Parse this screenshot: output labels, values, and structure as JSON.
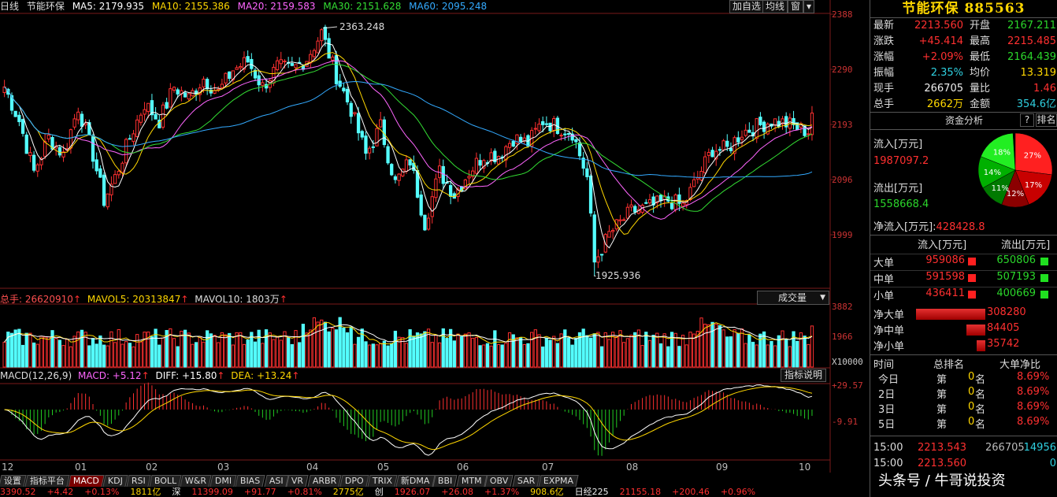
{
  "chart_header": {
    "period": "日线",
    "name": "节能环保",
    "ma5": "MA5: 2179.935",
    "ma10": "MA10: 2155.386",
    "ma20": "MA20: 2159.583",
    "ma30": "MA30: 2151.628",
    "ma60": "MA60: 2095.248",
    "arrow": "↑"
  },
  "toolbar": {
    "add_self": "加自选",
    "line": "均线",
    "window": "窗",
    "menu": "▾"
  },
  "colors": {
    "up": "#ff3030",
    "down": "#54ffff",
    "ma5": "#ffffff",
    "ma10": "#ffd700",
    "ma20": "#ff66ff",
    "ma30": "#33dd33",
    "ma60": "#33aaff"
  },
  "price_axis": [
    "2388",
    "2290",
    "2193",
    "2096",
    "1999"
  ],
  "price_annotations": {
    "high": "2363.248",
    "low": "1925.936"
  },
  "volume_header": {
    "total": "总手: 26620910",
    "mavol5": "MAVOL5: 20313847",
    "mavol10": "MAVOL10: 1803万",
    "arrow": "↑",
    "select": "成交量",
    "select_arrow": "▼"
  },
  "volume_axis": [
    "3882",
    "1966"
  ],
  "volume_unit": "X10000",
  "macd_header": {
    "label": "MACD(12,26,9)",
    "macd": "MACD: +5.12",
    "diff": "DIFF: +15.80",
    "dea": "DEA: +13.24",
    "arrow": "↑",
    "explain": "指标说明"
  },
  "macd_axis": [
    "+29.57",
    "-9.91"
  ],
  "x_axis": [
    "12",
    "01",
    "02",
    "03",
    "04",
    "05",
    "06",
    "07",
    "08",
    "09",
    "10"
  ],
  "tabs": [
    "设置",
    "指标平台",
    "MACD",
    "KDJ",
    "RSI",
    "BOLL",
    "W&R",
    "DMI",
    "BIAS",
    "ASI",
    "VR",
    "ARBR",
    "DPO",
    "TRIX",
    "新DMA",
    "BBI",
    "MTM",
    "OBV",
    "SAR",
    "EXPMA"
  ],
  "active_tab": "MACD",
  "quote": {
    "title": "节能环保 885563",
    "rows": [
      {
        "l1": "最新",
        "v1": "2213.560",
        "c1": "red",
        "l2": "开盘",
        "v2": "2167.211",
        "c2": "green"
      },
      {
        "l1": "涨跌",
        "v1": "+45.414",
        "c1": "red",
        "l2": "最高",
        "v2": "2215.485",
        "c2": "red"
      },
      {
        "l1": "涨幅",
        "v1": "+2.09%",
        "c1": "red",
        "l2": "最低",
        "v2": "2164.439",
        "c2": "green"
      },
      {
        "l1": "振幅",
        "v1": "2.35%",
        "c1": "cyan",
        "l2": "均价",
        "v2": "13.319",
        "c2": "yel"
      },
      {
        "l1": "现手",
        "v1": "266705",
        "c1": "white",
        "l2": "量比",
        "v2": "1.46",
        "c2": "red"
      },
      {
        "l1": "总手",
        "v1": "2662万",
        "c1": "yel",
        "l2": "金额",
        "v2": "354.6亿",
        "c2": "cyan"
      }
    ]
  },
  "fund": {
    "title": "资金分析",
    "help": "?",
    "rank": "排名",
    "inflow_label": "流入[万元]",
    "inflow": "1987097.2",
    "outflow_label": "流出[万元]",
    "outflow": "1558668.4",
    "net_label": "净流入[万元]:",
    "net": "428428.8",
    "pie": [
      {
        "label": "27%",
        "value": 27,
        "color": "#ff2020"
      },
      {
        "label": "17%",
        "value": 17,
        "color": "#c80000"
      },
      {
        "label": "12%",
        "value": 12,
        "color": "#8b0000"
      },
      {
        "label": "11%",
        "value": 11,
        "color": "#007a00"
      },
      {
        "label": "14%",
        "value": 14,
        "color": "#00b000"
      },
      {
        "label": "18%",
        "value": 18,
        "color": "#22ee22"
      }
    ],
    "table_head": {
      "in": "流入[万元]",
      "out": "流出[万元]"
    },
    "table": [
      {
        "label": "大单",
        "in": "959086",
        "out": "650806"
      },
      {
        "label": "中单",
        "in": "591598",
        "out": "507193"
      },
      {
        "label": "小单",
        "in": "436411",
        "out": "400669"
      }
    ],
    "net_rows": [
      {
        "label": "净大单",
        "value": "308280",
        "frac": 1.0
      },
      {
        "label": "净中单",
        "value": "84405",
        "frac": 0.27
      },
      {
        "label": "净小单",
        "value": "35742",
        "frac": 0.12
      }
    ]
  },
  "rank": {
    "head": {
      "time": "时间",
      "total": "总排名",
      "big": "大单净比"
    },
    "rows": [
      {
        "time": "今日",
        "pre": "第",
        "n": "0",
        "suf": "名",
        "pct": "8.69%"
      },
      {
        "time": "2日",
        "pre": "第",
        "n": "0",
        "suf": "名",
        "pct": "8.69%"
      },
      {
        "time": "3日",
        "pre": "第",
        "n": "0",
        "suf": "名",
        "pct": "8.69%"
      },
      {
        "time": "5日",
        "pre": "第",
        "n": "0",
        "suf": "名",
        "pct": "8.69%"
      }
    ]
  },
  "ticks": [
    {
      "time": "15:00",
      "price": "2213.543",
      "vol": "266705",
      "last": "14956"
    },
    {
      "time": "15:00",
      "price": "2213.560",
      "vol": "",
      "last": "0"
    }
  ],
  "watermark": "头条号 / 牛哥说投资",
  "bottom_bar": [
    "3390.52",
    "+4.42",
    "+0.13%",
    "1811亿",
    "深",
    "11399.09",
    "+91.77",
    "+0.81%",
    "2775亿",
    "创",
    "1926.07",
    "+26.08",
    "+1.37%",
    "908.6亿",
    "日经225",
    "21155.18",
    "+200.46",
    "+0.96%"
  ]
}
